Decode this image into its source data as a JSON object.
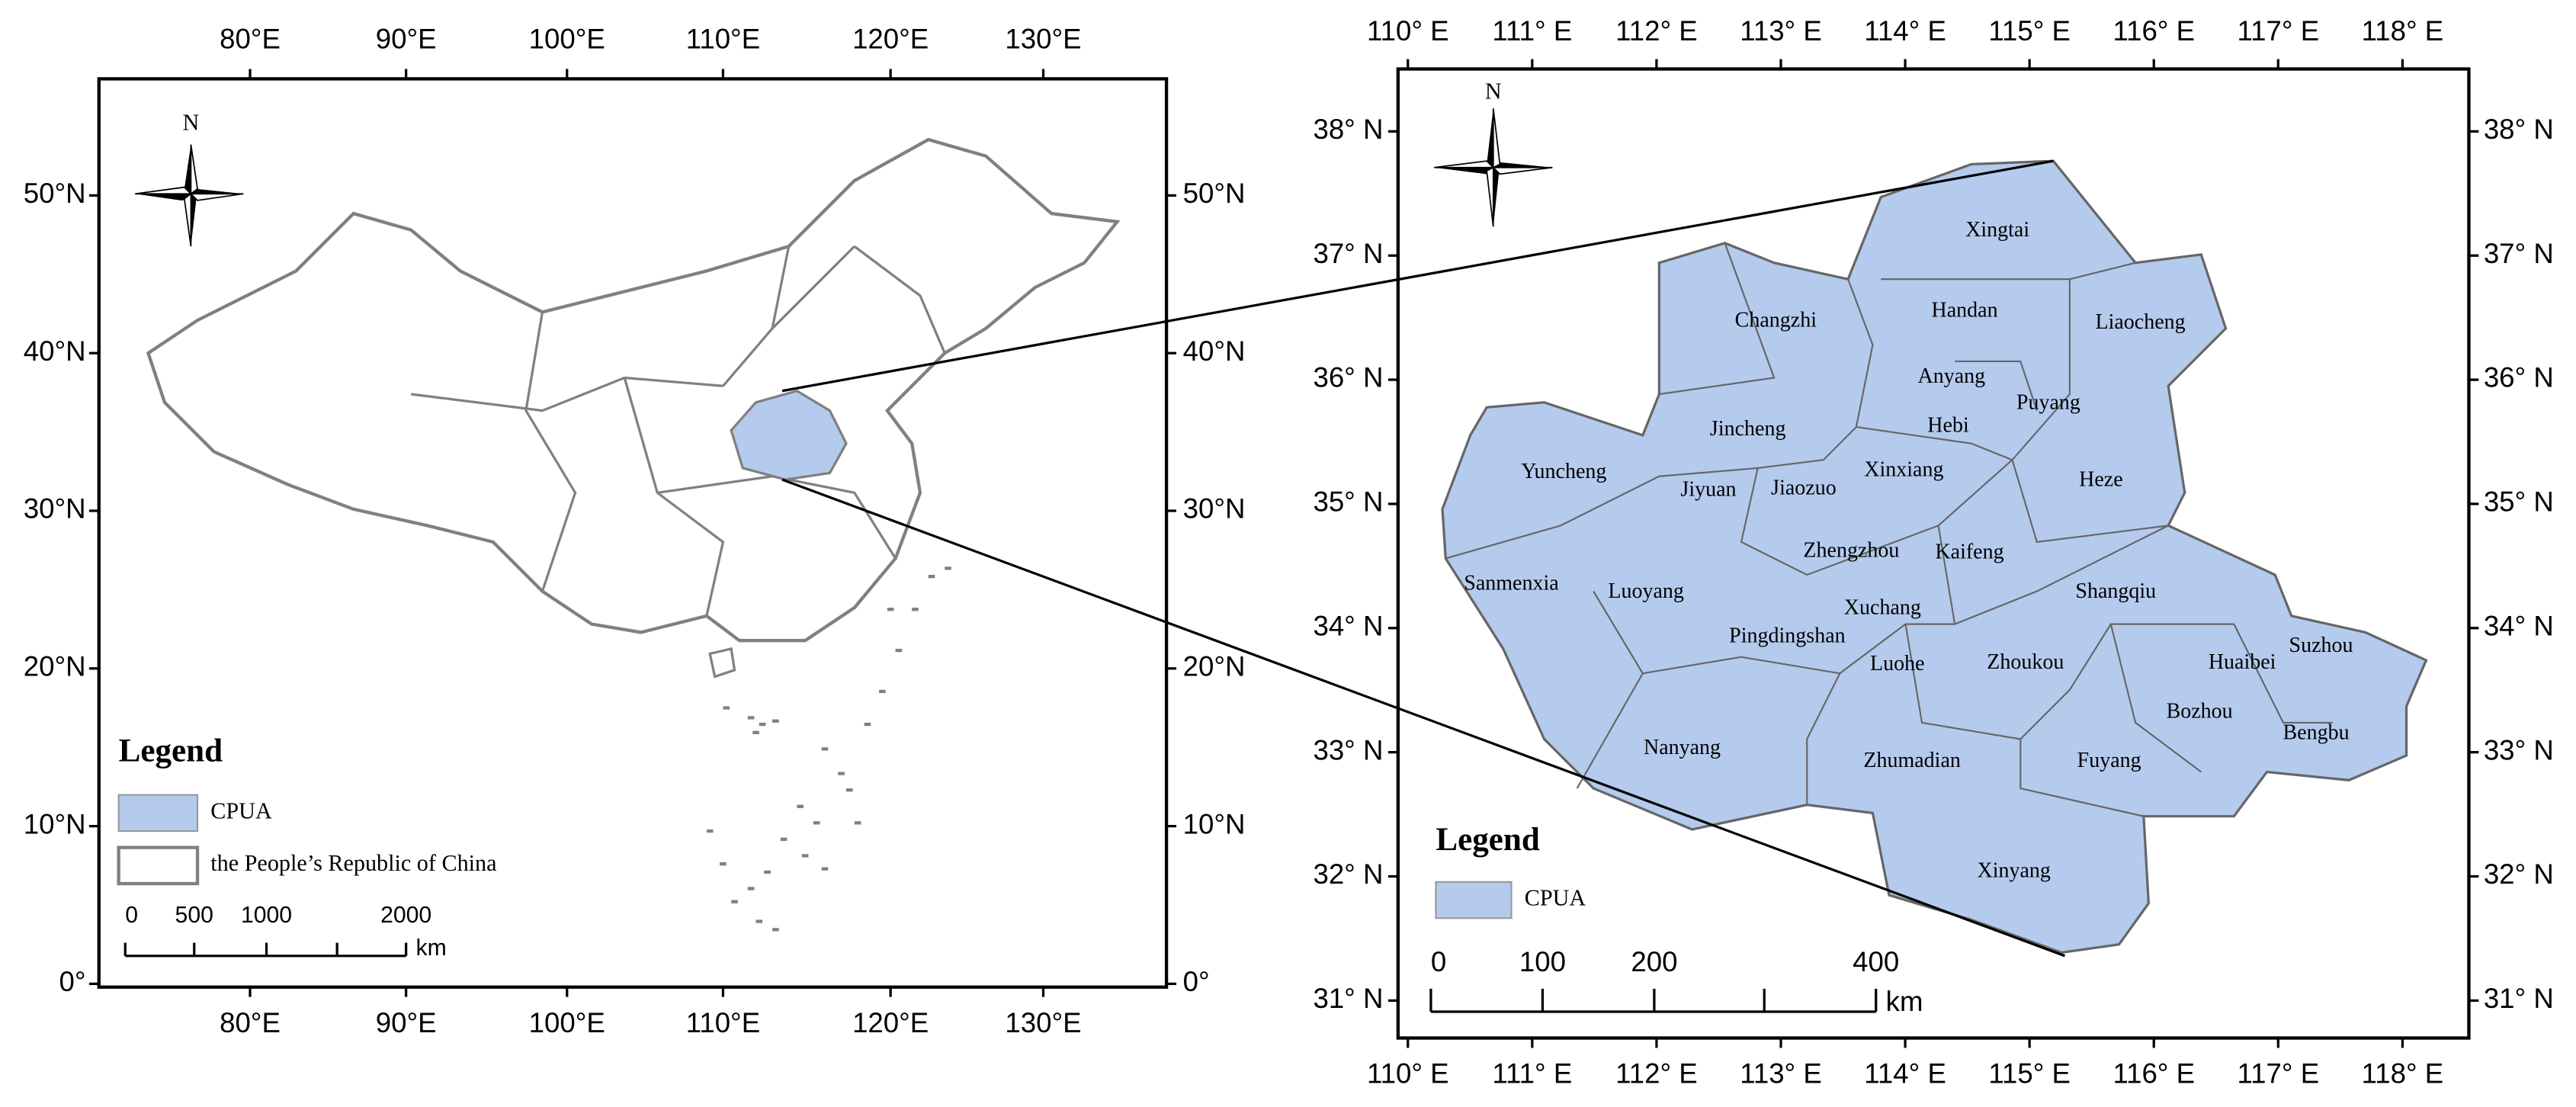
{
  "left_map": {
    "lon_labels": [
      "80°E",
      "90°E",
      "100°E",
      "110°E",
      "120°E",
      "130°E"
    ],
    "lat_labels": [
      "50°N",
      "40°N",
      "30°N",
      "20°N",
      "10°N",
      "0°"
    ],
    "north": "N",
    "legend": {
      "title": "Legend",
      "items": [
        "CPUA",
        "the People’s Republic of China"
      ]
    },
    "scale": {
      "labels": [
        "0",
        "500",
        "1000",
        "2000"
      ],
      "unit": "km"
    }
  },
  "right_map": {
    "lon_labels": [
      "110° E",
      "111° E",
      "112° E",
      "113° E",
      "114° E",
      "115° E",
      "116° E",
      "117° E",
      "118° E"
    ],
    "lat_labels": [
      "38° N",
      "37° N",
      "36° N",
      "35° N",
      "34° N",
      "33° N",
      "32° N",
      "31° N"
    ],
    "north": "N",
    "legend": {
      "title": "Legend",
      "items": [
        "CPUA"
      ]
    },
    "scale": {
      "labels": [
        "0",
        "100",
        "200",
        "400"
      ],
      "unit": "km"
    },
    "cities": [
      "Xingtai",
      "Changzhi",
      "Handan",
      "Liaocheng",
      "Anyang",
      "Puyang",
      "Hebi",
      "Jincheng",
      "Xinxiang",
      "Heze",
      "Yuncheng",
      "Jiyuan",
      "Jiaozuo",
      "Zhengzhou",
      "Kaifeng",
      "Sanmenxia",
      "Luoyang",
      "Shangqiu",
      "Xuchang",
      "Pingdingshan",
      "Huaibei",
      "Suzhou",
      "Luohe",
      "Zhoukou",
      "Bozhou",
      "Bengbu",
      "Nanyang",
      "Zhumadian",
      "Fuyang",
      "Xinyang"
    ]
  }
}
